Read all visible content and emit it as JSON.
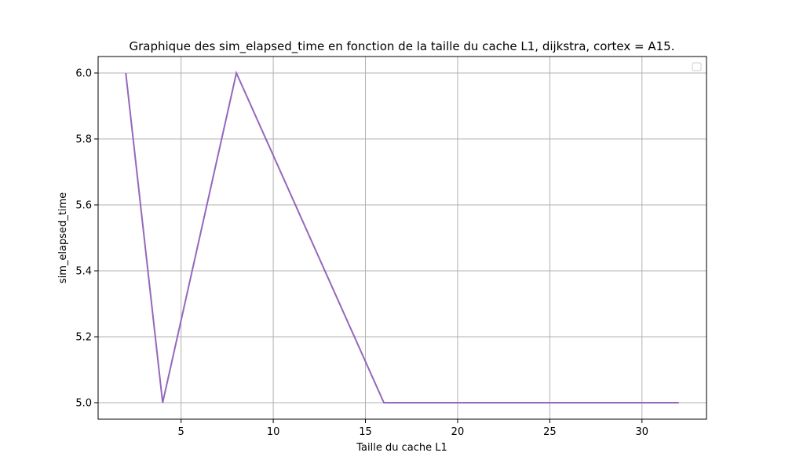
{
  "chart_data": {
    "type": "line",
    "title": "Graphique des sim_elapsed_time en fonction de la taille du cache L1, dijkstra, cortex = A15.",
    "xlabel": "Taille du cache L1",
    "ylabel": "sim_elapsed_time",
    "xlim": [
      0.5,
      33.5
    ],
    "ylim": [
      4.95,
      6.05
    ],
    "x_ticks": [
      5,
      10,
      15,
      20,
      25,
      30
    ],
    "y_ticks": [
      5.0,
      5.2,
      5.4,
      5.6,
      5.8,
      6.0
    ],
    "x_tick_labels": [
      "5",
      "10",
      "15",
      "20",
      "25",
      "30"
    ],
    "y_tick_labels": [
      "5.0",
      "5.2",
      "5.4",
      "5.6",
      "5.8",
      "6.0"
    ],
    "grid": true,
    "legend_placement": "top-right",
    "series": [
      {
        "color": "#9467bd",
        "x": [
          2,
          4,
          8,
          16,
          32
        ],
        "y": [
          6.0,
          5.0,
          6.0,
          5.0,
          5.0
        ]
      }
    ]
  }
}
